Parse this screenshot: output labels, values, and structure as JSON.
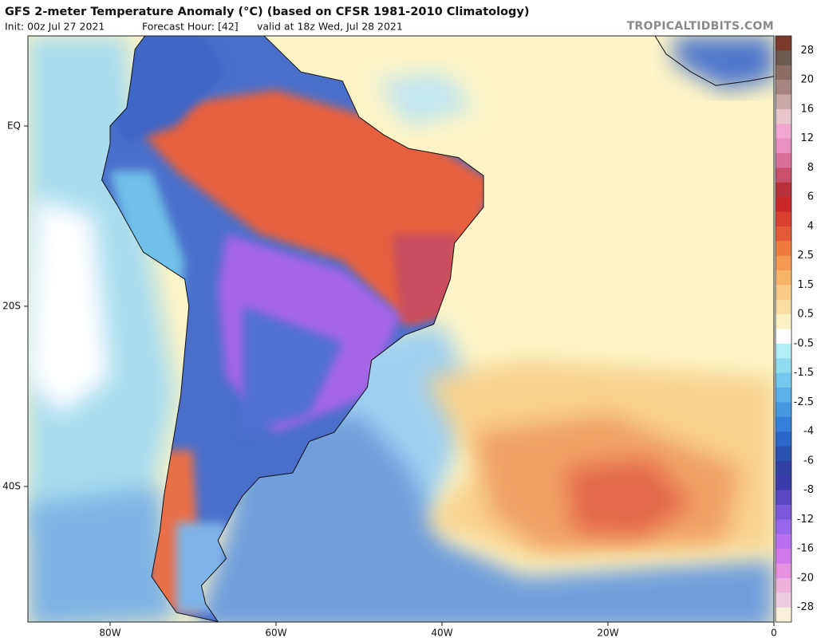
{
  "header": {
    "title": "GFS 2-meter Temperature Anomaly (°C) (based on CFSR 1981-2010 Climatology)",
    "init": "Init: 00z Jul 27 2021",
    "forecast_hour": "Forecast Hour: [42]",
    "valid": "valid at 18z Wed, Jul 28 2021",
    "site": "TROPICALTIDBITS.COM"
  },
  "map": {
    "lat_labels": [
      "EQ",
      "20S",
      "40S"
    ],
    "lon_labels": [
      "80W",
      "60W",
      "40W",
      "20W",
      "0"
    ]
  },
  "colorbar": {
    "labels": [
      "28",
      "20",
      "16",
      "12",
      "8",
      "6",
      "4",
      "2.5",
      "1.5",
      "0.5",
      "-0.5",
      "-1.5",
      "-2.5",
      "-4",
      "-6",
      "-8",
      "-12",
      "-16",
      "-20",
      "-28"
    ]
  }
}
